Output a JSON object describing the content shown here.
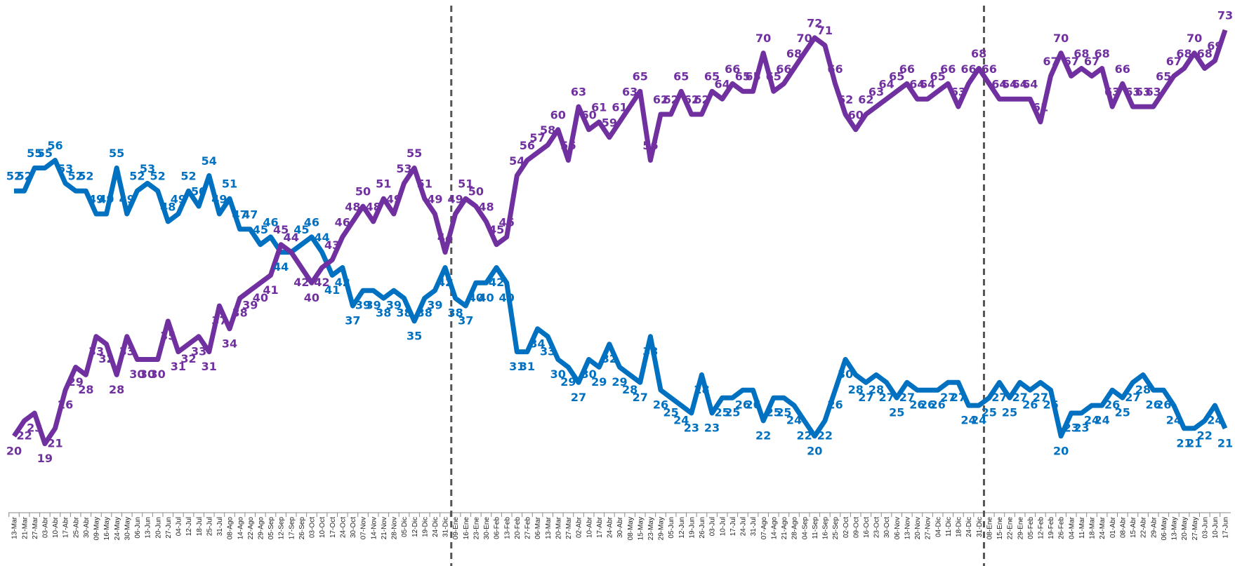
{
  "chart_data": {
    "type": "line",
    "categories": [
      "13-Mar",
      "21-Mar",
      "27-Mar",
      "03-Abr",
      "10-Abr",
      "17-Abr",
      "25-Abr",
      "30-Abr",
      "09-May",
      "16-May",
      "24-May",
      "30-May",
      "06-Jun",
      "13-Jun",
      "20-Jun",
      "27-Jun",
      "04-Jul",
      "12-Jul",
      "18-Jul",
      "25-Jul",
      "31-Jul",
      "08-Ago",
      "14-Ago",
      "22-Ago",
      "29-Ago",
      "05-Sep",
      "12-Sep",
      "17-Sep",
      "26-Sep",
      "03-Oct",
      "10-Oct",
      "17-Oct",
      "24-Oct",
      "30-Oct",
      "07-Nov",
      "14-Nov",
      "21-Nov",
      "28-Nov",
      "05-Dic",
      "12-Dic",
      "19-Dic",
      "24-Dic",
      "31-Dic",
      "09-Ene",
      "16-Ene",
      "23-Ene",
      "30-Ene",
      "06-Feb",
      "13-Feb",
      "20-Feb",
      "27-Feb",
      "06-Mar",
      "13-Mar",
      "20-Mar",
      "27-Mar",
      "02-Abr",
      "10-Abr",
      "17-Abr",
      "24-Abr",
      "30-Abr",
      "08-May",
      "15-May",
      "23-May",
      "29-May",
      "05-Jun",
      "12-Jun",
      "19-Jun",
      "26-Jun",
      "03-Jul",
      "10-Jul",
      "17-Jul",
      "24-Jul",
      "31-Jul",
      "07-Ago",
      "14-Ago",
      "21-Ago",
      "28-Ago",
      "04-Sep",
      "11-Sep",
      "16-Sep",
      "25-Sep",
      "02-Oct",
      "09-Oct",
      "16-Oct",
      "23-Oct",
      "30-Oct",
      "06-Nov",
      "13-Nov",
      "20-Nov",
      "27-Nov",
      "04-Dic",
      "11-Dic",
      "18-Dic",
      "24-Dic",
      "31-Dic",
      "08-Ene",
      "15-Ene",
      "22-Ene",
      "29-Ene",
      "05-Feb",
      "12-Feb",
      "19-Feb",
      "26-Feb",
      "04-Mar",
      "11-Mar",
      "18-Mar",
      "24-Mar",
      "01-Abr",
      "08-Abr",
      "15-Abr",
      "22-Abr",
      "29-Abr",
      "06-May",
      "13-May",
      "20-May",
      "27-May",
      "03-Jun",
      "10-Jun",
      "17-Jun"
    ],
    "series": [
      {
        "color": "#0070c0",
        "values": [
          52,
          52,
          55,
          55,
          56,
          53,
          52,
          52,
          49,
          49,
          55,
          49,
          52,
          53,
          52,
          48,
          49,
          52,
          50,
          54,
          49,
          51,
          47,
          47,
          45,
          46,
          44,
          44,
          45,
          46,
          44,
          41,
          42,
          37,
          39,
          39,
          38,
          39,
          38,
          35,
          38,
          39,
          42,
          38,
          37,
          40,
          40,
          42,
          40,
          31,
          31,
          34,
          33,
          30,
          29,
          27,
          30,
          29,
          32,
          29,
          28,
          27,
          33,
          26,
          25,
          24,
          23,
          28,
          23,
          25,
          25,
          26,
          26,
          22,
          25,
          25,
          24,
          22,
          20,
          22,
          26,
          30,
          28,
          27,
          28,
          27,
          25,
          27,
          26,
          26,
          26,
          27,
          27,
          24,
          24,
          25,
          27,
          25,
          27,
          26,
          27,
          26,
          20,
          23,
          23,
          24,
          24,
          26,
          25,
          27,
          28,
          26,
          26,
          24,
          21,
          21,
          22,
          24,
          21
        ]
      },
      {
        "color": "#7030a0",
        "values": [
          20,
          22,
          23,
          19,
          21,
          26,
          29,
          28,
          33,
          32,
          28,
          33,
          30,
          30,
          30,
          35,
          31,
          32,
          33,
          31,
          37,
          34,
          38,
          39,
          40,
          41,
          45,
          44,
          42,
          40,
          42,
          43,
          46,
          48,
          50,
          48,
          51,
          49,
          53,
          55,
          51,
          49,
          44,
          49,
          51,
          50,
          48,
          45,
          46,
          54,
          56,
          57,
          58,
          60,
          56,
          63,
          60,
          61,
          59,
          61,
          63,
          65,
          56,
          62,
          62,
          65,
          62,
          62,
          65,
          64,
          66,
          65,
          65,
          70,
          65,
          66,
          68,
          70,
          72,
          71,
          66,
          62,
          60,
          62,
          63,
          64,
          65,
          66,
          64,
          64,
          65,
          66,
          63,
          66,
          68,
          66,
          64,
          64,
          64,
          64,
          61,
          67,
          70,
          67,
          68,
          67,
          68,
          63,
          66,
          63,
          63,
          63,
          65,
          67,
          68,
          70,
          68,
          69,
          73
        ]
      }
    ],
    "ylim": [
      10,
      75
    ],
    "grid": false
  }
}
